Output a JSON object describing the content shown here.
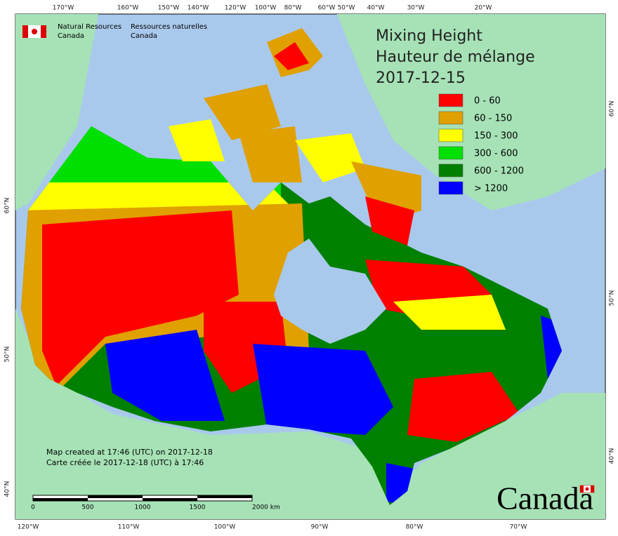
{
  "header": {
    "agency_en": "Natural Resources",
    "agency_en_2": "Canada",
    "agency_fr": "Ressources naturelles",
    "agency_fr_2": "Canada"
  },
  "title": {
    "line1": "Mixing Height",
    "line2": "Hauteur de mélange",
    "date": "2017-12-15"
  },
  "legend": {
    "items": [
      {
        "label": "0 - 60",
        "color": "#ff0000"
      },
      {
        "label": "60 - 150",
        "color": "#e0a000"
      },
      {
        "label": "150 - 300",
        "color": "#ffff00"
      },
      {
        "label": "300 - 600",
        "color": "#00e000"
      },
      {
        "label": "600 - 1200",
        "color": "#008000"
      },
      {
        "label": "> 1200",
        "color": "#0000ff"
      }
    ]
  },
  "graticule": {
    "top": [
      "170°W",
      "160°W",
      "150°W",
      "140°W",
      "120°W",
      "100°W",
      "80°W",
      "60°W",
      "50°W",
      "40°W",
      "30°W",
      "20°W"
    ],
    "bottom": [
      "120°W",
      "110°W",
      "100°W",
      "90°W",
      "80°W",
      "70°W"
    ],
    "left": [
      "60°N",
      "50°N",
      "40°N"
    ],
    "right": [
      "60°N",
      "50°N",
      "40°N"
    ]
  },
  "footer": {
    "created_en": "Map created at 17:46 (UTC) on 2017-12-18",
    "created_fr": "Carte créée le 2017-12-18 (UTC) à 17:46"
  },
  "scale": {
    "labels": [
      "0",
      "500",
      "1000",
      "1500",
      "2000 km"
    ]
  },
  "wordmark": "Canada"
}
